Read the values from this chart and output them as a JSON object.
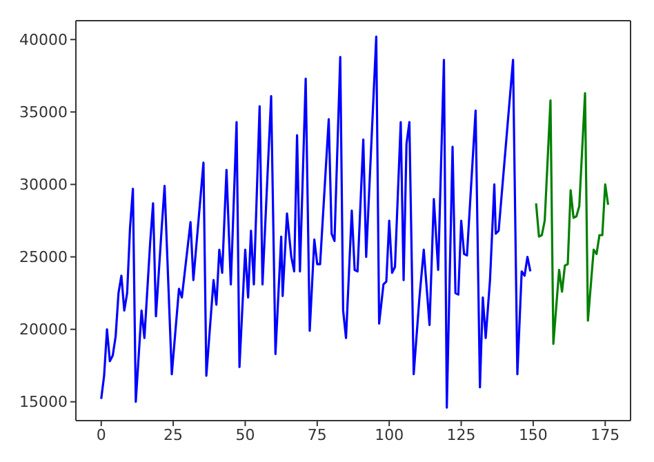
{
  "chart_data": {
    "type": "line",
    "xlim": [
      -8.8,
      183.8
    ],
    "ylim": [
      13700,
      41300
    ],
    "xticks": [
      0,
      25,
      50,
      75,
      100,
      125,
      150,
      175
    ],
    "yticks": [
      15000,
      20000,
      25000,
      30000,
      35000,
      40000
    ],
    "grid": false,
    "marker": "none",
    "line_style": "solid",
    "series": [
      {
        "color": "#0000ff",
        "x": [
          0,
          1,
          2,
          3,
          4,
          5,
          6,
          7,
          8,
          9,
          10,
          11,
          12,
          14,
          15,
          17,
          18,
          19,
          21,
          22,
          24.5,
          27,
          28,
          31,
          32,
          35.5,
          36.5,
          39,
          40,
          41,
          42,
          43.5,
          45,
          47,
          48,
          50,
          51,
          52,
          53,
          55,
          56,
          59,
          60.5,
          62.5,
          63,
          64.5,
          66,
          67,
          68,
          69,
          71,
          72.4,
          74,
          75,
          76,
          79,
          80,
          81,
          83,
          84,
          85,
          87,
          88,
          89,
          91,
          92,
          95.5,
          96.5,
          98,
          99,
          100,
          101,
          102,
          104,
          105,
          106,
          107,
          108.5,
          110.5,
          112,
          114,
          115.5,
          117,
          119,
          120,
          122,
          123,
          124,
          125,
          126,
          127,
          130,
          131.5,
          132.5,
          133.5,
          135,
          136.5,
          137,
          138,
          143,
          144.5,
          146,
          147,
          148,
          149
        ],
        "values": [
          15200,
          16800,
          20000,
          17800,
          18200,
          19500,
          22500,
          23700,
          21300,
          22500,
          27000,
          29700,
          15000,
          21300,
          19400,
          26000,
          28700,
          20900,
          27000,
          29900,
          16900,
          22800,
          22200,
          27400,
          23400,
          31500,
          16800,
          23400,
          21700,
          25500,
          23900,
          31000,
          23100,
          34300,
          17400,
          25500,
          22200,
          26800,
          23100,
          35400,
          23100,
          36100,
          18300,
          26400,
          22300,
          28000,
          25000,
          24000,
          33400,
          24000,
          37300,
          19900,
          26200,
          24500,
          24500,
          34500,
          26600,
          26100,
          38800,
          21300,
          19400,
          28200,
          24100,
          24000,
          33100,
          25000,
          40200,
          20400,
          23100,
          23300,
          27500,
          23900,
          24300,
          34300,
          23400,
          32800,
          34300,
          16900,
          22200,
          25500,
          20300,
          29000,
          24100,
          38600,
          14600,
          32600,
          22500,
          22400,
          27500,
          25200,
          25100,
          35100,
          16000,
          22200,
          19400,
          23400,
          30000,
          26600,
          26800,
          38600,
          16900,
          24000,
          23700,
          25000,
          24000
        ]
      },
      {
        "color": "#008000",
        "x": [
          151,
          152,
          153,
          154,
          156,
          157,
          159,
          160,
          161,
          162,
          163,
          164,
          165,
          166,
          168,
          169,
          171,
          172,
          173,
          174,
          175,
          176
        ],
        "values": [
          28700,
          26400,
          26500,
          27500,
          35800,
          19000,
          24100,
          22600,
          24400,
          24500,
          29600,
          27700,
          27800,
          28500,
          36300,
          20600,
          25500,
          25200,
          26500,
          26500,
          30000,
          28600
        ]
      }
    ]
  }
}
